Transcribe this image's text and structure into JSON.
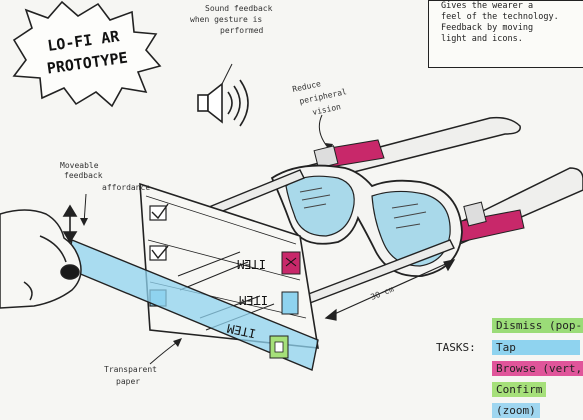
{
  "burst": {
    "line1": "LO-FI AR",
    "line2": "PROTOTYPE"
  },
  "notes": {
    "sound": [
      "Sound feedback",
      "when gesture is",
      "performed"
    ],
    "peripheral": [
      "Reduce",
      "peripheral",
      "vision"
    ],
    "moveable": [
      "Moveable",
      "feedback",
      "affordance"
    ],
    "transparent": [
      "Transparent",
      "paper"
    ],
    "distance": "30 cm"
  },
  "description": [
    "Gives the wearer a",
    "feel of the technology.",
    "Feedback by moving",
    "light and icons."
  ],
  "items": [
    {
      "label": "ITEM",
      "state": "selected"
    },
    {
      "label": "ITEM",
      "state": "normal"
    },
    {
      "label": "ITEM",
      "state": "normal"
    }
  ],
  "tasks": {
    "label": "TASKS:",
    "list": [
      {
        "text": "Dismiss (pop-u",
        "color": "#9bdc78"
      },
      {
        "text": "Tap",
        "color": "#8fd3ef"
      },
      {
        "text": "Browse (vert,",
        "color": "#e0559a"
      },
      {
        "text": "Confirm",
        "color": "#a6e07a"
      },
      {
        "text": "(zoom)",
        "color": "#9fd6f0"
      }
    ]
  },
  "colors": {
    "lens": "#a9d9ea",
    "panel": "#8fd3ef",
    "strap": "#c8286a",
    "frame": "#f2f2f2"
  }
}
